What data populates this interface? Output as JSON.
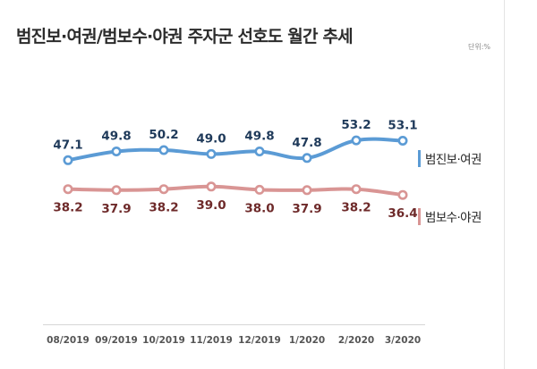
{
  "title": "범진보·여권/범보수·야권 주자군 선호도 월간 추세",
  "unit_label": "단위:%",
  "colors": {
    "progressive": "#5b9bd5",
    "conservative": "#d99594",
    "progressive_label": "#1f3a5a",
    "conservative_label": "#6e2a2a",
    "axis_text": "#555555"
  },
  "chart_data": {
    "type": "line",
    "title": "범진보·여권/범보수·야권 주자군 선호도 월간 추세",
    "categories": [
      "08/2019",
      "09/2019",
      "10/2019",
      "11/2019",
      "12/2019",
      "1/2020",
      "2/2020",
      "3/2020"
    ],
    "series": [
      {
        "name": "범진보·여권",
        "values": [
          47.1,
          49.8,
          50.2,
          49.0,
          49.8,
          47.8,
          53.2,
          53.1
        ],
        "labels": [
          "47.1",
          "49.8",
          "50.2",
          "49.0",
          "49.8",
          "47.8",
          "53.2",
          "53.1"
        ]
      },
      {
        "name": "범보수·야권",
        "values": [
          38.2,
          37.9,
          38.2,
          39.0,
          38.0,
          37.9,
          38.2,
          36.4
        ],
        "labels": [
          "38.2",
          "37.9",
          "38.2",
          "39.0",
          "38.0",
          "37.9",
          "38.2",
          "36.4"
        ]
      }
    ],
    "xlabel": "",
    "ylabel": "",
    "grid": false,
    "legend": "right"
  }
}
